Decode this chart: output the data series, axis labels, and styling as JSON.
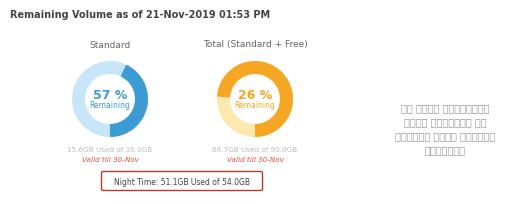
{
  "title": "Remaining Volume as of 21-Nov-2019 01:53 PM",
  "bg_color": "#ffffff",
  "chart1_label": "Standard",
  "chart1_pct": 57,
  "chart1_used_pct": 43,
  "chart1_used_color": "#3d9bd4",
  "chart1_remaining_color": "#c8e6f7",
  "chart1_text_color": "#3d9bd4",
  "chart1_sub1": "15.6GB Used of 36.0GB",
  "chart1_sub2": "Valid till 30-Nov",
  "chart2_label": "Total (Standard + Free)",
  "chart2_pct": 26,
  "chart2_used_pct": 74,
  "chart2_used_color": "#f5a623",
  "chart2_remaining_color": "#fde9b0",
  "chart2_text_color": "#f5a623",
  "chart2_sub1": "66.7GB Used of 90.0GB",
  "chart2_sub2": "Valid till 30-Nov",
  "night_label": "Night Time: 51.1GB Used of 54.0GB",
  "night_box_color": "#c0392b",
  "sinhala_line1": "ශ් ලංකා තෙලිකලම්",
  "sinhala_line2": "දන්න ල්විටරය මත",
  "sinhala_line3": "රාත්රි දන්න හාවිනය",
  "sinhala_line4": "පෙන්වයි",
  "sinhala_color": "#999999",
  "sub_text_color": "#bbbbbb",
  "valid_text_color": "#e74c3c",
  "title_color": "#444444"
}
